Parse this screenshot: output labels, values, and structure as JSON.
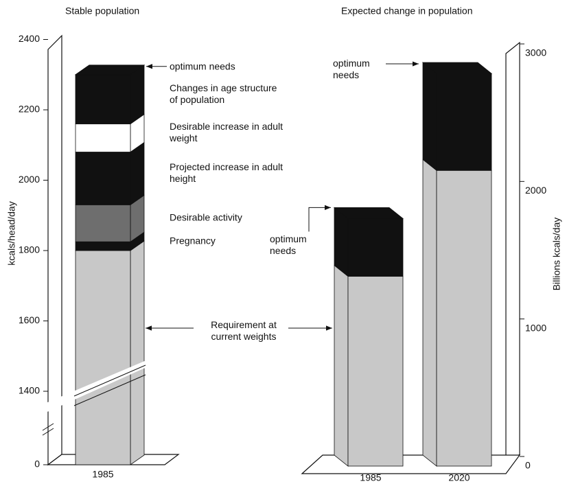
{
  "chart_data": [
    {
      "type": "stacked_bar",
      "title": "Stable population",
      "y_label": "kcals/head/day",
      "categories": [
        "1985"
      ],
      "series": [
        {
          "name": "Requirement at current weights",
          "color": "#c8c8c8",
          "values": [
            1800
          ]
        },
        {
          "name": "Pregnancy",
          "color": "#111111",
          "values": [
            25
          ]
        },
        {
          "name": "Desirable activity",
          "color": "#6e6e6e",
          "values": [
            105
          ]
        },
        {
          "name": "Projected increase in adult height",
          "color": "#111111",
          "values": [
            150
          ]
        },
        {
          "name": "Desirable increase in adult weight",
          "color": "#ffffff",
          "values": [
            80
          ]
        },
        {
          "name": "Changes in age structure of population",
          "color": "#111111",
          "values": [
            140
          ]
        }
      ],
      "annotation": "optimum needs",
      "ylim": [
        0,
        2400
      ],
      "yticks": [
        0,
        1400,
        1600,
        1800,
        2000,
        2200,
        2400
      ],
      "axis_break": true
    },
    {
      "type": "stacked_bar",
      "title": "Expected change in population",
      "y2_label": "Billions kcals/day",
      "categories": [
        "1985",
        "2020"
      ],
      "series": [
        {
          "color": "#c8c8c8",
          "values": [
            1380,
            2150
          ],
          "axis": "y2"
        },
        {
          "color": "#111111",
          "values": [
            420,
            705
          ],
          "axis": "y2"
        }
      ],
      "annotations": [
        "optimum needs",
        "optimum needs"
      ],
      "y2lim": [
        0,
        3000
      ],
      "y2ticks": [
        0,
        1000,
        2000,
        3000
      ]
    }
  ]
}
